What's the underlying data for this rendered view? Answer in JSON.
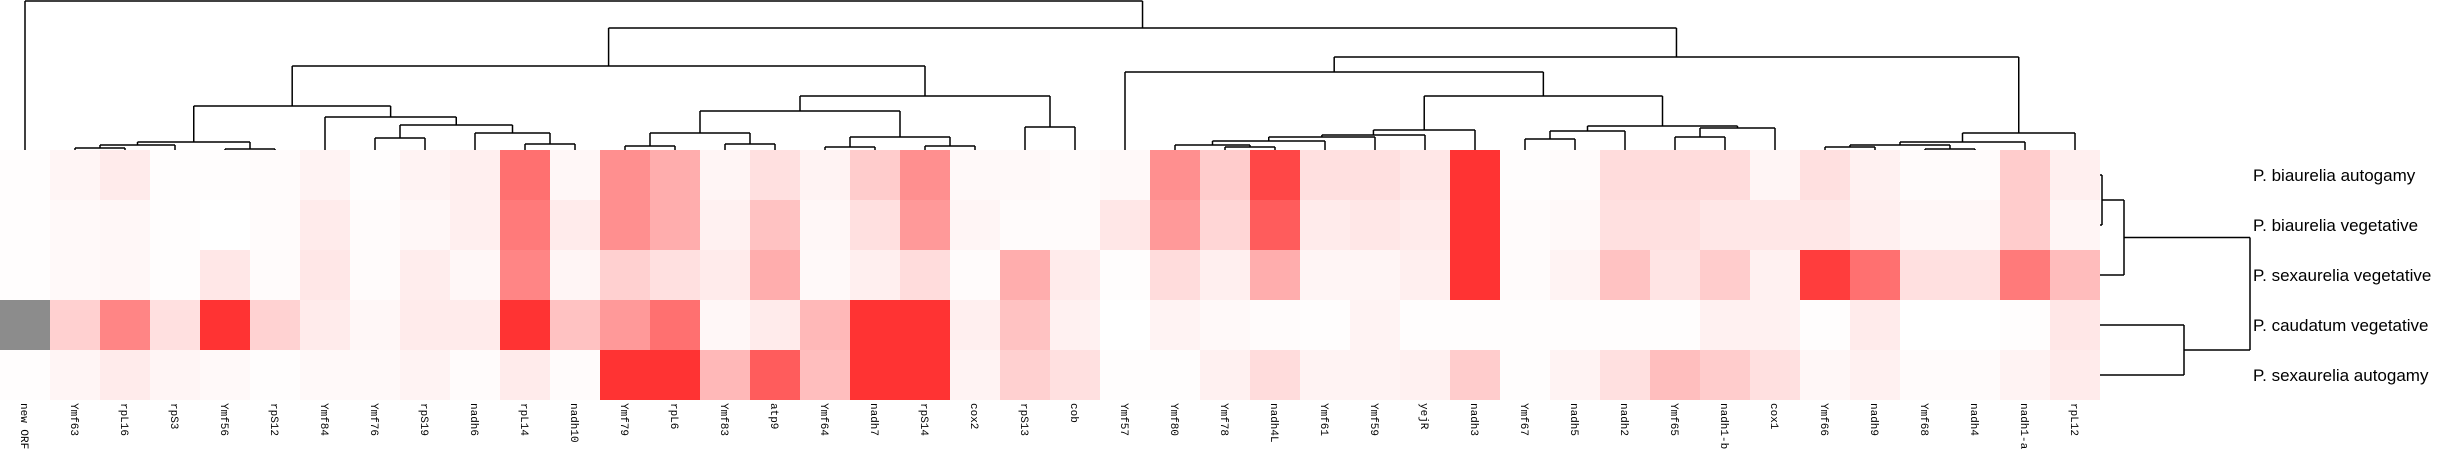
{
  "chart_data": {
    "type": "heatmap",
    "title": "",
    "columns": [
      "new ORF",
      "Ymf63",
      "rpL16",
      "rpS3",
      "Ymf56",
      "rpS12",
      "Ymf84",
      "Ymf76",
      "rpS19",
      "nadh6",
      "rpL14",
      "nadh10",
      "Ymf79",
      "rpL6",
      "Ymf83",
      "atp9",
      "Ymf64",
      "nadh7",
      "rpS14",
      "cox2",
      "rpS13",
      "cob",
      "Ymf57",
      "Ymf80",
      "Ymf78",
      "nadh4L",
      "Ymf61",
      "Ymf59",
      "yejR",
      "nadh3",
      "Ymf67",
      "nadh5",
      "nadh2",
      "Ymf65",
      "nadh1-b",
      "cox1",
      "Ymf66",
      "nadh9",
      "Ymf68",
      "nadh4",
      "nadh1-a",
      "rpL12"
    ],
    "rows": [
      "P. biaurelia autogamy",
      "P. biaurelia vegetative",
      "P. sexaurelia vegetative",
      "P. caudatum vegetative",
      "P. sexaurelia autogamy"
    ],
    "values": [
      [
        0.01,
        0.05,
        0.1,
        0.01,
        0.01,
        0.02,
        0.06,
        0.01,
        0.06,
        0.08,
        0.7,
        0.04,
        0.55,
        0.4,
        0.05,
        0.15,
        0.06,
        0.25,
        0.55,
        0.03,
        0.03,
        0.02,
        0.03,
        0.55,
        0.25,
        0.9,
        0.15,
        0.15,
        0.12,
        1.0,
        0.01,
        0.02,
        0.17,
        0.17,
        0.17,
        0.05,
        0.15,
        0.07,
        0.02,
        0.02,
        0.25,
        0.08
      ],
      [
        0.01,
        0.03,
        0.04,
        0.01,
        0.0,
        0.02,
        0.1,
        0.02,
        0.04,
        0.08,
        0.65,
        0.1,
        0.55,
        0.4,
        0.07,
        0.3,
        0.04,
        0.15,
        0.5,
        0.05,
        0.02,
        0.02,
        0.12,
        0.5,
        0.2,
        0.8,
        0.1,
        0.12,
        0.1,
        1.0,
        0.02,
        0.03,
        0.15,
        0.15,
        0.12,
        0.12,
        0.12,
        0.08,
        0.04,
        0.04,
        0.25,
        0.05
      ],
      [
        0.01,
        0.03,
        0.04,
        0.01,
        0.12,
        0.02,
        0.12,
        0.02,
        0.09,
        0.04,
        0.6,
        0.05,
        0.23,
        0.15,
        0.1,
        0.4,
        0.03,
        0.08,
        0.17,
        0.02,
        0.4,
        0.1,
        0.01,
        0.17,
        0.08,
        0.4,
        0.05,
        0.05,
        0.08,
        1.0,
        0.02,
        0.06,
        0.3,
        0.13,
        0.25,
        0.07,
        0.95,
        0.7,
        0.15,
        0.15,
        0.65,
        0.33
      ],
      [
        null,
        0.23,
        0.6,
        0.15,
        1.0,
        0.22,
        0.1,
        0.04,
        0.1,
        0.1,
        1.0,
        0.3,
        0.5,
        0.7,
        0.04,
        0.1,
        0.35,
        1.0,
        1.0,
        0.08,
        0.3,
        0.07,
        0.0,
        0.06,
        0.03,
        0.02,
        0.01,
        0.06,
        0.01,
        0.01,
        0.01,
        0.01,
        0.01,
        0.01,
        0.07,
        0.07,
        0.01,
        0.1,
        0.0,
        0.0,
        0.01,
        0.12
      ],
      [
        0.01,
        0.05,
        0.1,
        0.05,
        0.03,
        0.01,
        0.03,
        0.03,
        0.06,
        0.02,
        0.1,
        0.02,
        1.0,
        1.0,
        0.35,
        0.8,
        0.32,
        1.0,
        1.0,
        0.06,
        0.23,
        0.15,
        0.01,
        0.01,
        0.07,
        0.17,
        0.06,
        0.06,
        0.07,
        0.25,
        0.01,
        0.06,
        0.15,
        0.32,
        0.25,
        0.15,
        0.04,
        0.07,
        0.02,
        0.02,
        0.06,
        0.1
      ]
    ],
    "value_range": [
      0,
      1
    ],
    "colors": {
      "low": "#ffffff",
      "high": "#ff3333",
      "missing": "#8c8c8c",
      "line": "#000000"
    },
    "column_dendrogram": {
      "h": 149,
      "c": [
        0,
        {
          "h": 122,
          "c": [
            {
              "h": 84,
              "c": [
                {
                  "h": 44,
                  "c": [
                    {
                      "h": 8,
                      "c": [
                        {
                          "h": 5,
                          "c": [
                            {
                              "h": 2,
                              "c": [
                                1,
                                2
                              ]
                            },
                            3
                          ]
                        },
                        {
                          "h": 1,
                          "c": [
                            4,
                            5
                          ]
                        }
                      ]
                    },
                    {
                      "h": 33,
                      "c": [
                        6,
                        {
                          "h": 25,
                          "c": [
                            {
                              "h": 12,
                              "c": [
                                7,
                                8
                              ]
                            },
                            {
                              "h": 17,
                              "c": [
                                9,
                                {
                                  "h": 6,
                                  "c": [
                                    10,
                                    11
                                  ]
                                }
                              ]
                            }
                          ]
                        }
                      ]
                    }
                  ]
                },
                {
                  "h": 54,
                  "c": [
                    {
                      "h": 39,
                      "c": [
                        {
                          "h": 17,
                          "c": [
                            {
                              "h": 4,
                              "c": [
                                12,
                                13
                              ]
                            },
                            {
                              "h": 6,
                              "c": [
                                14,
                                15
                              ]
                            }
                          ]
                        },
                        {
                          "h": 13,
                          "c": [
                            {
                              "h": 3,
                              "c": [
                                16,
                                17
                              ]
                            },
                            {
                              "h": 4,
                              "c": [
                                18,
                                19
                              ]
                            }
                          ]
                        }
                      ]
                    },
                    {
                      "h": 23,
                      "c": [
                        20,
                        21
                      ]
                    }
                  ]
                }
              ]
            },
            {
              "h": 93,
              "c": [
                {
                  "h": 78,
                  "c": [
                    22,
                    {
                      "h": 54,
                      "c": [
                        {
                          "h": 20,
                          "c": [
                            {
                              "h": 15,
                              "c": [
                                {
                                  "h": 13,
                                  "c": [
                                    {
                                      "h": 9,
                                      "c": [
                                        {
                                          "h": 5,
                                          "c": [
                                            23,
                                            {
                                              "h": 3,
                                              "c": [
                                                24,
                                                25
                                              ]
                                            }
                                          ]
                                        },
                                        26
                                      ]
                                    },
                                    27
                                  ]
                                },
                                28
                              ]
                            },
                            29
                          ]
                        },
                        {
                          "h": 24,
                          "c": [
                            {
                              "h": 19,
                              "c": [
                                {
                                  "h": 11,
                                  "c": [
                                    30,
                                    31
                                  ]
                                },
                                32
                              ]
                            },
                            {
                              "h": 22,
                              "c": [
                                {
                                  "h": 13,
                                  "c": [
                                    33,
                                    34
                                  ]
                                },
                                35
                              ]
                            }
                          ]
                        }
                      ]
                    }
                  ]
                },
                {
                  "h": 17,
                  "c": [
                    {
                      "h": 8,
                      "c": [
                        {
                          "h": 5,
                          "c": [
                            {
                              "h": 3,
                              "c": [
                                36,
                                37
                              ]
                            },
                            {
                              "h": 1,
                              "c": [
                                38,
                                39
                              ]
                            }
                          ]
                        },
                        40
                      ]
                    },
                    41
                  ]
                }
              ]
            }
          ]
        }
      ]
    },
    "row_dendrogram": {
      "h": 150,
      "c": [
        {
          "h": 24,
          "c": [
            {
              "h": 2,
              "c": [
                0,
                1
              ]
            },
            2
          ]
        },
        {
          "h": 84,
          "c": [
            3,
            4
          ]
        }
      ]
    }
  }
}
